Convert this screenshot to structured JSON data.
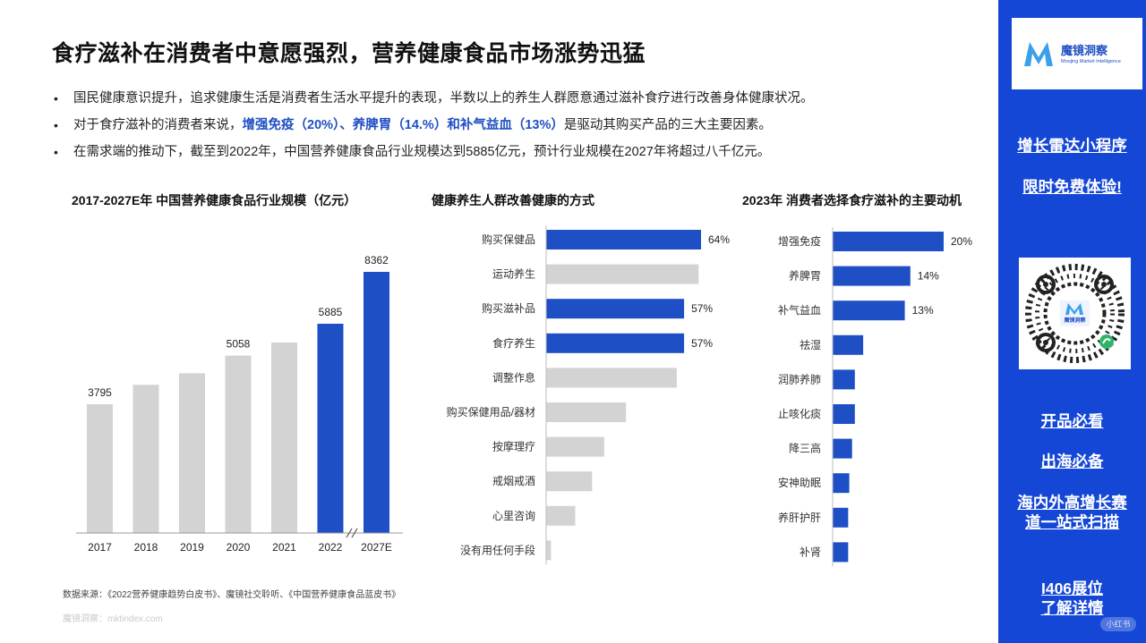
{
  "slide": {
    "title": "食疗滋补在消费者中意愿强烈，营养健康食品市场涨势迅猛",
    "bullets": [
      {
        "text": "国民健康意识提升，追求健康生活是消费者生活水平提升的表现，半数以上的养生人群愿意通过滋补食疗进行改善身体健康状况。"
      },
      {
        "pre": "对于食疗滋补的消费者来说，",
        "highlight": "增强免疫（20%）、养脾胃（14.%）和补气益血（13%）",
        "post": "是驱动其购买产品的三大主要因素。"
      },
      {
        "text": "在需求端的推动下，截至到2022年，中国营养健康食品行业规模达到5885亿元，预计行业规模在2027年将超过八千亿元。"
      }
    ],
    "bullet_symbol": "•",
    "source": "数据来源：《2022营养健康趋势白皮书》、魔镜社交聆听、《中国营养健康食品蓝皮书》",
    "watermark": "魔镜洞察：mktindex.com"
  },
  "colors": {
    "accent": "#1f4fc4",
    "bar_gray": "#d3d3d3",
    "sidebar": "#1447d6"
  },
  "chart_data": [
    {
      "type": "bar",
      "title": "2017-2027E年 中国营养健康食品行业规模（亿元）",
      "categories": [
        "2017",
        "2018",
        "2019",
        "2020",
        "2021",
        "2022",
        "2027E"
      ],
      "values": [
        3795,
        4300,
        4600,
        5058,
        5400,
        5885,
        8362
      ],
      "labels": [
        "3795",
        "",
        "",
        "5058",
        "",
        "5885",
        "8362"
      ],
      "highlighted": [
        "2022",
        "2027E"
      ],
      "axis_break_before": "2027E"
    },
    {
      "type": "bar",
      "orientation": "horizontal",
      "title": "健康养生人群改善健康的方式",
      "categories": [
        "购买保健品",
        "运动养生",
        "购买滋补品",
        "食疗养生",
        "调整作息",
        "购买保健用品/器材",
        "按摩理疗",
        "戒烟戒酒",
        "心里咨询",
        "没有用任何手段"
      ],
      "values": [
        64,
        63,
        57,
        57,
        54,
        33,
        24,
        19,
        12,
        2
      ],
      "labels": [
        "64%",
        "",
        "57%",
        "57%",
        "",
        "",
        "",
        "",
        "",
        ""
      ],
      "highlighted": [
        "购买保健品",
        "购买滋补品",
        "食疗养生"
      ],
      "xlim": [
        0,
        64
      ]
    },
    {
      "type": "bar",
      "orientation": "horizontal",
      "title": "2023年 消费者选择食疗滋补的主要动机",
      "categories": [
        "增强免疫",
        "养脾胃",
        "补气益血",
        "祛湿",
        "润肺养肺",
        "止咳化痰",
        "降三高",
        "安神助眠",
        "养肝护肝",
        "补肾"
      ],
      "values": [
        20,
        14,
        13,
        5.5,
        4,
        4,
        3.5,
        3,
        2.8,
        2.8
      ],
      "labels": [
        "20%",
        "14%",
        "13%",
        "",
        "",
        "",
        "",
        "",
        "",
        ""
      ],
      "highlighted": [
        "增强免疫",
        "养脾胃",
        "补气益血",
        "祛湿",
        "润肺养肺",
        "止咳化痰",
        "降三高",
        "安神助眠",
        "养肝护肝",
        "补肾"
      ],
      "xlim": [
        0,
        20
      ]
    }
  ],
  "sidebar": {
    "logo_name": "魔镜洞察",
    "logo_sub": "Moojing Market Intelligence",
    "logo_letter": "M",
    "promo_line1": "增长雷达小程序",
    "promo_line2": "限时免费体验!",
    "qr_center_label": "魔镜洞察",
    "links": [
      "开品必看",
      "出海必备",
      "海内外高增长赛",
      "道一站式扫描"
    ],
    "booth_line1": "I406展位",
    "booth_line2": "了解详情",
    "corner_badge": "小红书"
  }
}
